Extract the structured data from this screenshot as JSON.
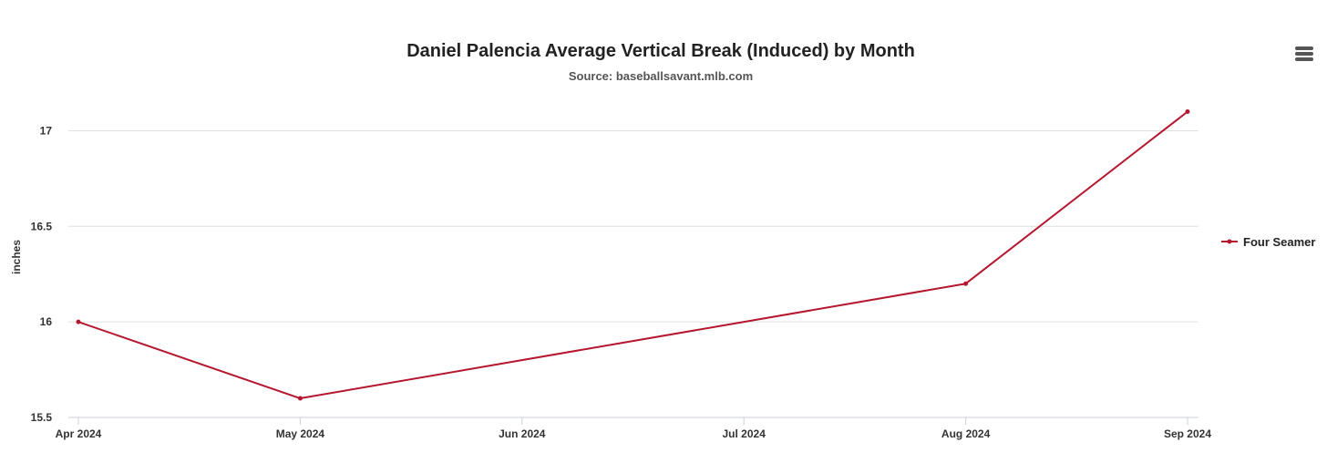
{
  "chart_data": {
    "type": "line",
    "title": "Daniel Palencia Average Vertical Break (Induced) by Month",
    "subtitle": "Source: baseballsavant.mlb.com",
    "ylabel": "inches",
    "xlabel": "",
    "categories": [
      "Apr 2024",
      "May 2024",
      "Jun 2024",
      "Jul 2024",
      "Aug 2024",
      "Sep 2024"
    ],
    "x": [
      "2024-04",
      "2024-05",
      "2024-06",
      "2024-07",
      "2024-08",
      "2024-09"
    ],
    "series": [
      {
        "name": "Four Seamer",
        "color": "#b5172f",
        "points": [
          {
            "x": "2024-04",
            "y": 16.0
          },
          {
            "x": "2024-05",
            "y": 15.6
          },
          {
            "x": "2024-08",
            "y": 16.2
          },
          {
            "x": "2024-09",
            "y": 17.1
          }
        ]
      }
    ],
    "yticks": [
      "15.5",
      "16",
      "16.5",
      "17"
    ],
    "ylim": [
      15.5,
      17.15
    ],
    "grid": true,
    "legend_position": "right"
  },
  "menu": {
    "icon": "hamburger-menu-icon"
  }
}
